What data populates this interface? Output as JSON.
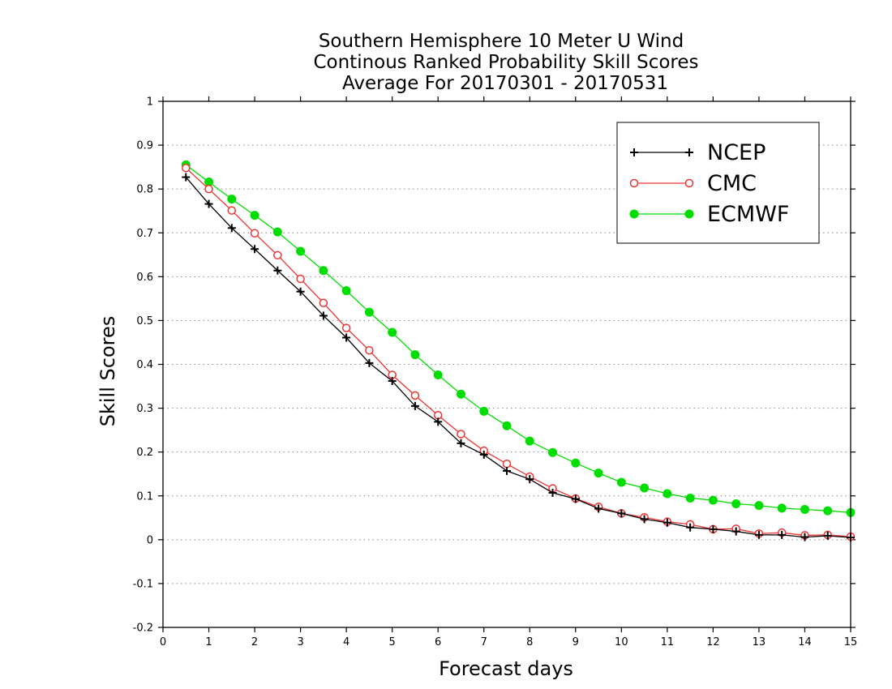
{
  "chart_data": {
    "type": "line",
    "title": [
      "Southern Hemisphere 10 Meter U Wind",
      "Continous Ranked Probability Skill Scores",
      "Average For 20170301 - 20170531"
    ],
    "xlabel": "Forecast days",
    "ylabel": "Skill Scores",
    "xlim": [
      0,
      15
    ],
    "ylim": [
      -0.2,
      1
    ],
    "xticks": [
      0,
      1,
      2,
      3,
      4,
      5,
      6,
      7,
      8,
      9,
      10,
      11,
      12,
      13,
      14,
      15
    ],
    "yticks": [
      -0.2,
      -0.1,
      0,
      0.1,
      0.2,
      0.3,
      0.4,
      0.5,
      0.6,
      0.7,
      0.8,
      0.9,
      1
    ],
    "ytick_labels": [
      "-0.2",
      "-0.1",
      "0",
      "0.1",
      "0.2",
      "0.3",
      "0.4",
      "0.5",
      "0.6",
      "0.7",
      "0.8",
      "0.9",
      "1"
    ],
    "grid": "horizontal dotted",
    "legend_position": "top-right",
    "x": [
      0.5,
      1,
      1.5,
      2,
      2.5,
      3,
      3.5,
      4,
      4.5,
      5,
      5.5,
      6,
      6.5,
      7,
      7.5,
      8,
      8.5,
      9,
      9.5,
      10,
      10.5,
      11,
      11.5,
      12,
      12.5,
      13,
      13.5,
      14,
      14.5,
      15
    ],
    "series": [
      {
        "name": "NCEP",
        "color": "#000000",
        "marker": "plus",
        "values": [
          0.827,
          0.766,
          0.711,
          0.663,
          0.614,
          0.566,
          0.511,
          0.461,
          0.403,
          0.362,
          0.305,
          0.269,
          0.22,
          0.194,
          0.157,
          0.138,
          0.107,
          0.093,
          0.071,
          0.06,
          0.047,
          0.039,
          0.028,
          0.024,
          0.019,
          0.011,
          0.011,
          0.006,
          0.009,
          0.005
        ]
      },
      {
        "name": "CMC",
        "color": "#ee3333",
        "marker": "open-circle",
        "values": [
          0.848,
          0.8,
          0.751,
          0.699,
          0.649,
          0.595,
          0.54,
          0.483,
          0.432,
          0.376,
          0.329,
          0.284,
          0.241,
          0.203,
          0.173,
          0.144,
          0.117,
          0.094,
          0.075,
          0.06,
          0.051,
          0.041,
          0.035,
          0.024,
          0.025,
          0.014,
          0.016,
          0.01,
          0.011,
          0.007
        ]
      },
      {
        "name": "ECMWF",
        "color": "#00dd00",
        "marker": "filled-circle",
        "values": [
          0.855,
          0.816,
          0.777,
          0.74,
          0.702,
          0.658,
          0.614,
          0.568,
          0.519,
          0.473,
          0.422,
          0.376,
          0.332,
          0.293,
          0.26,
          0.225,
          0.199,
          0.175,
          0.152,
          0.131,
          0.118,
          0.105,
          0.095,
          0.09,
          0.082,
          0.078,
          0.072,
          0.069,
          0.066,
          0.062
        ]
      }
    ]
  }
}
